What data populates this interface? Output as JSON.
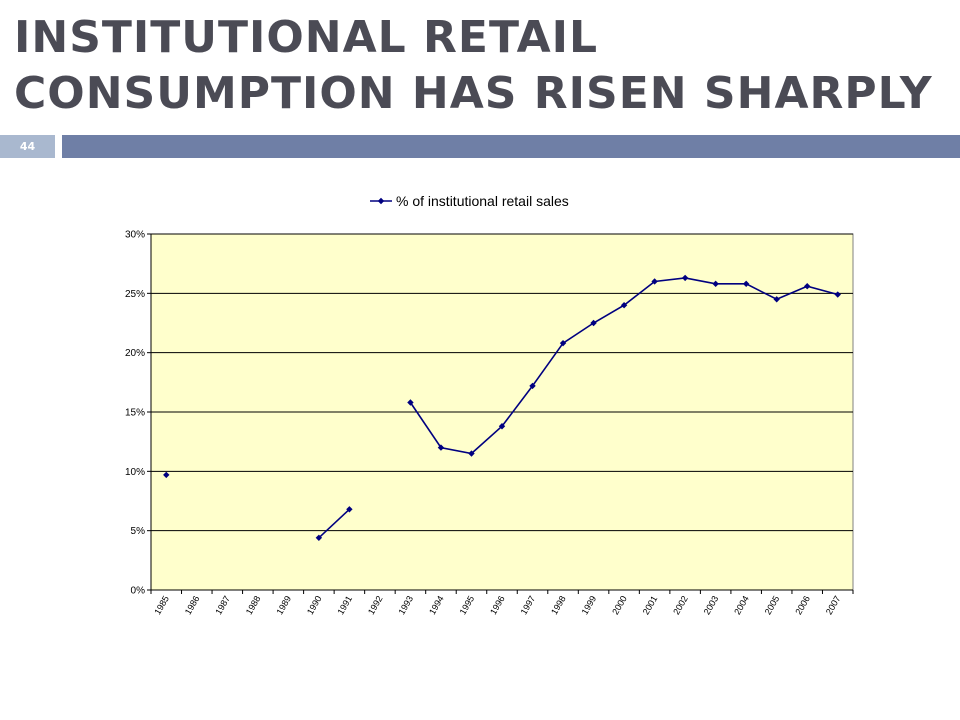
{
  "slide": {
    "title": "INSTITUTIONAL RETAIL CONSUMPTION HAS RISEN SHARPLY",
    "page_number": "44"
  },
  "colors": {
    "plot_background": "#ffffcc",
    "series": "#000080",
    "title_text": "#4b4b55",
    "header_bar": "#6f7fa6",
    "page_tab": "#a9b8cf"
  },
  "chart_data": {
    "type": "line",
    "title": "",
    "xlabel": "",
    "ylabel": "",
    "ylim": [
      0,
      30
    ],
    "yticks": [
      0,
      5,
      10,
      15,
      20,
      25,
      30
    ],
    "ytick_labels": [
      "0%",
      "5%",
      "10%",
      "15%",
      "20%",
      "25%",
      "30%"
    ],
    "grid": "horizontal",
    "legend_position": "top",
    "categories": [
      "1985",
      "1986",
      "1987",
      "1988",
      "1989",
      "1990",
      "1991",
      "1992",
      "1993",
      "1994",
      "1995",
      "1996",
      "1997",
      "1998",
      "1999",
      "2000",
      "2001",
      "2002",
      "2003",
      "2004",
      "2005",
      "2006",
      "2007"
    ],
    "series": [
      {
        "name": "% of institutional retail sales",
        "values": [
          9.7,
          null,
          null,
          null,
          null,
          4.4,
          6.8,
          null,
          15.8,
          12.0,
          11.5,
          13.8,
          17.2,
          20.8,
          22.5,
          24.0,
          26.0,
          26.3,
          25.8,
          25.8,
          24.5,
          25.6,
          24.9
        ]
      }
    ]
  }
}
